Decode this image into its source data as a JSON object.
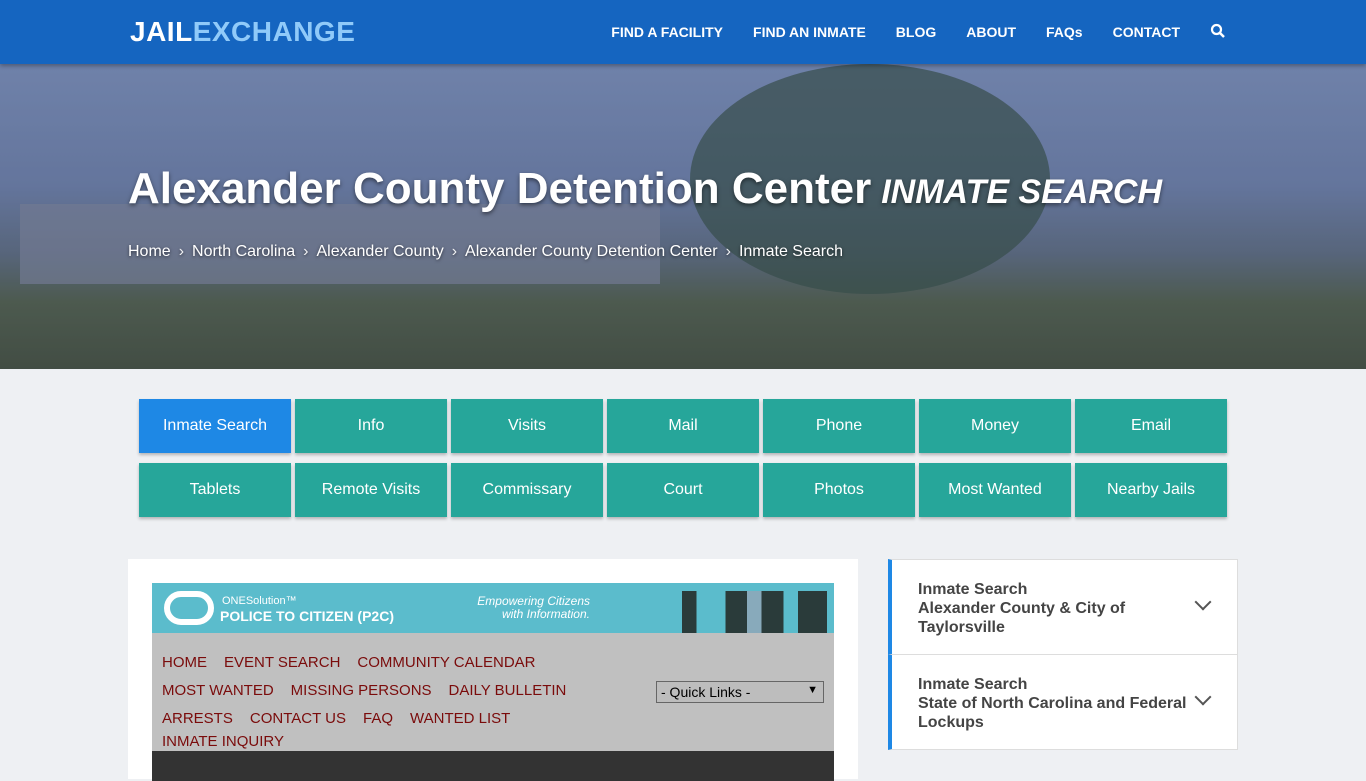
{
  "brand": {
    "part1": "JAIL",
    "part2": "EXCHANGE"
  },
  "menu": [
    "FIND A FACILITY",
    "FIND AN INMATE",
    "BLOG",
    "ABOUT",
    "FAQs",
    "CONTACT"
  ],
  "hero": {
    "title": "Alexander County Detention Center",
    "subtitle": "INMATE SEARCH",
    "breadcrumb": [
      "Home",
      "North Carolina",
      "Alexander County",
      "Alexander County Detention Center",
      "Inmate Search"
    ]
  },
  "buttons": [
    "Inmate Search",
    "Info",
    "Visits",
    "Mail",
    "Phone",
    "Money",
    "Email",
    "Tablets",
    "Remote Visits",
    "Commissary",
    "Court",
    "Photos",
    "Most Wanted",
    "Nearby Jails"
  ],
  "p2c": {
    "brand_top": "ONESolution™",
    "brand_main": "POLICE TO CITIZEN (P2C)",
    "tagline1": "Empowering Citizens",
    "tagline2": "with Information.",
    "links": [
      "HOME",
      "EVENT SEARCH",
      "COMMUNITY CALENDAR",
      "MOST WANTED",
      "MISSING PERSONS",
      "DAILY BULLETIN",
      "ARRESTS",
      "CONTACT US",
      "FAQ",
      "WANTED LIST",
      "INMATE INQUIRY"
    ],
    "quick_links": "- Quick Links -"
  },
  "sidebar": [
    {
      "title": "Inmate Search",
      "sub": "Alexander County & City of Taylorsville"
    },
    {
      "title": "Inmate Search",
      "sub": "State of North Carolina and Federal Lockups"
    }
  ]
}
